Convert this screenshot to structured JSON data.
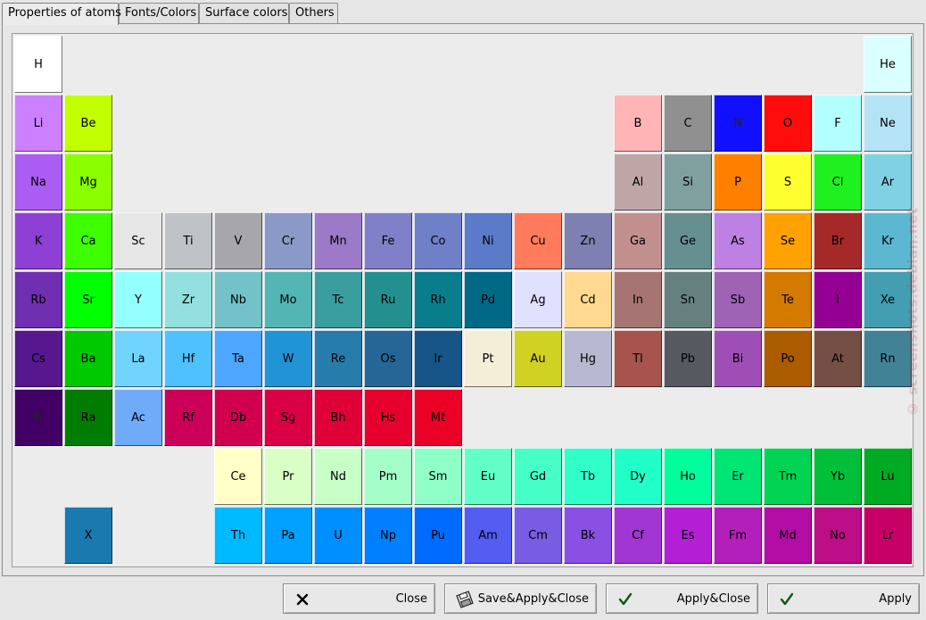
{
  "tabs": [
    {
      "label": "Properties of atoms",
      "active": true
    },
    {
      "label": "Fonts/Colors",
      "active": false
    },
    {
      "label": "Surface colors",
      "active": false
    },
    {
      "label": "Others",
      "active": false
    }
  ],
  "elements": [
    {
      "symbol": "H",
      "row": 1,
      "col": 1,
      "color": "#ffffff"
    },
    {
      "symbol": "He",
      "row": 1,
      "col": 18,
      "color": "#d9ffff"
    },
    {
      "symbol": "Li",
      "row": 2,
      "col": 1,
      "color": "#cc80ff"
    },
    {
      "symbol": "Be",
      "row": 2,
      "col": 2,
      "color": "#c2ff00"
    },
    {
      "symbol": "B",
      "row": 2,
      "col": 13,
      "color": "#ffb5b5"
    },
    {
      "symbol": "C",
      "row": 2,
      "col": 14,
      "color": "#909090"
    },
    {
      "symbol": "N",
      "row": 2,
      "col": 15,
      "color": "#1010ff"
    },
    {
      "symbol": "O",
      "row": 2,
      "col": 16,
      "color": "#ff0d0d"
    },
    {
      "symbol": "F",
      "row": 2,
      "col": 17,
      "color": "#b3ffff"
    },
    {
      "symbol": "Ne",
      "row": 2,
      "col": 18,
      "color": "#b3e3f5"
    },
    {
      "symbol": "Na",
      "row": 3,
      "col": 1,
      "color": "#ab5cf2"
    },
    {
      "symbol": "Mg",
      "row": 3,
      "col": 2,
      "color": "#8aff00"
    },
    {
      "symbol": "Al",
      "row": 3,
      "col": 13,
      "color": "#bfa6a6"
    },
    {
      "symbol": "Si",
      "row": 3,
      "col": 14,
      "color": "#80a0a0"
    },
    {
      "symbol": "P",
      "row": 3,
      "col": 15,
      "color": "#ff8000"
    },
    {
      "symbol": "S",
      "row": 3,
      "col": 16,
      "color": "#ffff30"
    },
    {
      "symbol": "Cl",
      "row": 3,
      "col": 17,
      "color": "#1ff01f"
    },
    {
      "symbol": "Ar",
      "row": 3,
      "col": 18,
      "color": "#80d1e3"
    },
    {
      "symbol": "K",
      "row": 4,
      "col": 1,
      "color": "#8f40d4"
    },
    {
      "symbol": "Ca",
      "row": 4,
      "col": 2,
      "color": "#3dff00"
    },
    {
      "symbol": "Sc",
      "row": 4,
      "col": 3,
      "color": "#e6e6e6"
    },
    {
      "symbol": "Ti",
      "row": 4,
      "col": 4,
      "color": "#bfc2c7"
    },
    {
      "symbol": "V",
      "row": 4,
      "col": 5,
      "color": "#a6a6ab"
    },
    {
      "symbol": "Cr",
      "row": 4,
      "col": 6,
      "color": "#8a99c7"
    },
    {
      "symbol": "Mn",
      "row": 4,
      "col": 7,
      "color": "#9c7ac7"
    },
    {
      "symbol": "Fe",
      "row": 4,
      "col": 8,
      "color": "#8080c8"
    },
    {
      "symbol": "Co",
      "row": 4,
      "col": 9,
      "color": "#7080c8"
    },
    {
      "symbol": "Ni",
      "row": 4,
      "col": 10,
      "color": "#5b7bc8"
    },
    {
      "symbol": "Cu",
      "row": 4,
      "col": 11,
      "color": "#ff7b5b"
    },
    {
      "symbol": "Zn",
      "row": 4,
      "col": 12,
      "color": "#7d80b0"
    },
    {
      "symbol": "Ga",
      "row": 4,
      "col": 13,
      "color": "#c28f8f"
    },
    {
      "symbol": "Ge",
      "row": 4,
      "col": 14,
      "color": "#668f8f"
    },
    {
      "symbol": "As",
      "row": 4,
      "col": 15,
      "color": "#bd80e3"
    },
    {
      "symbol": "Se",
      "row": 4,
      "col": 16,
      "color": "#ffa100"
    },
    {
      "symbol": "Br",
      "row": 4,
      "col": 17,
      "color": "#a62929"
    },
    {
      "symbol": "Kr",
      "row": 4,
      "col": 18,
      "color": "#5cb8d1"
    },
    {
      "symbol": "Rb",
      "row": 5,
      "col": 1,
      "color": "#702eb0"
    },
    {
      "symbol": "Sr",
      "row": 5,
      "col": 2,
      "color": "#00ff00"
    },
    {
      "symbol": "Y",
      "row": 5,
      "col": 3,
      "color": "#94ffff"
    },
    {
      "symbol": "Zr",
      "row": 5,
      "col": 4,
      "color": "#94e0e0"
    },
    {
      "symbol": "Nb",
      "row": 5,
      "col": 5,
      "color": "#73c2c9"
    },
    {
      "symbol": "Mo",
      "row": 5,
      "col": 6,
      "color": "#54b5b5"
    },
    {
      "symbol": "Tc",
      "row": 5,
      "col": 7,
      "color": "#3b9e9e"
    },
    {
      "symbol": "Ru",
      "row": 5,
      "col": 8,
      "color": "#248f8f"
    },
    {
      "symbol": "Rh",
      "row": 5,
      "col": 9,
      "color": "#0a7d8c"
    },
    {
      "symbol": "Pd",
      "row": 5,
      "col": 10,
      "color": "#006985"
    },
    {
      "symbol": "Ag",
      "row": 5,
      "col": 11,
      "color": "#e0e0ff"
    },
    {
      "symbol": "Cd",
      "row": 5,
      "col": 12,
      "color": "#ffd98f"
    },
    {
      "symbol": "In",
      "row": 5,
      "col": 13,
      "color": "#a67573"
    },
    {
      "symbol": "Sn",
      "row": 5,
      "col": 14,
      "color": "#668080"
    },
    {
      "symbol": "Sb",
      "row": 5,
      "col": 15,
      "color": "#9e63b5"
    },
    {
      "symbol": "Te",
      "row": 5,
      "col": 16,
      "color": "#d47a00"
    },
    {
      "symbol": "I",
      "row": 5,
      "col": 17,
      "color": "#940094"
    },
    {
      "symbol": "Xe",
      "row": 5,
      "col": 18,
      "color": "#429eb0"
    },
    {
      "symbol": "Cs",
      "row": 6,
      "col": 1,
      "color": "#57178f"
    },
    {
      "symbol": "Ba",
      "row": 6,
      "col": 2,
      "color": "#00c900"
    },
    {
      "symbol": "La",
      "row": 6,
      "col": 3,
      "color": "#70d4ff"
    },
    {
      "symbol": "Hf",
      "row": 6,
      "col": 4,
      "color": "#4dc2ff"
    },
    {
      "symbol": "Ta",
      "row": 6,
      "col": 5,
      "color": "#4da6ff"
    },
    {
      "symbol": "W",
      "row": 6,
      "col": 6,
      "color": "#2194d6"
    },
    {
      "symbol": "Re",
      "row": 6,
      "col": 7,
      "color": "#267dab"
    },
    {
      "symbol": "Os",
      "row": 6,
      "col": 8,
      "color": "#266696"
    },
    {
      "symbol": "Ir",
      "row": 6,
      "col": 9,
      "color": "#175487"
    },
    {
      "symbol": "Pt",
      "row": 6,
      "col": 10,
      "color": "#f5eed6"
    },
    {
      "symbol": "Au",
      "row": 6,
      "col": 11,
      "color": "#cfd123"
    },
    {
      "symbol": "Hg",
      "row": 6,
      "col": 12,
      "color": "#b8b8d0"
    },
    {
      "symbol": "Tl",
      "row": 6,
      "col": 13,
      "color": "#a6544d"
    },
    {
      "symbol": "Pb",
      "row": 6,
      "col": 14,
      "color": "#575961"
    },
    {
      "symbol": "Bi",
      "row": 6,
      "col": 15,
      "color": "#9e4fb5"
    },
    {
      "symbol": "Po",
      "row": 6,
      "col": 16,
      "color": "#ab5c00"
    },
    {
      "symbol": "At",
      "row": 6,
      "col": 17,
      "color": "#754f45"
    },
    {
      "symbol": "Rn",
      "row": 6,
      "col": 18,
      "color": "#428296"
    },
    {
      "symbol": "Fr",
      "row": 7,
      "col": 1,
      "color": "#420066"
    },
    {
      "symbol": "Ra",
      "row": 7,
      "col": 2,
      "color": "#007d00"
    },
    {
      "symbol": "Ac",
      "row": 7,
      "col": 3,
      "color": "#70abfa"
    },
    {
      "symbol": "Rf",
      "row": 7,
      "col": 4,
      "color": "#cc0059"
    },
    {
      "symbol": "Db",
      "row": 7,
      "col": 5,
      "color": "#d1004f"
    },
    {
      "symbol": "Sg",
      "row": 7,
      "col": 6,
      "color": "#d90045"
    },
    {
      "symbol": "Bh",
      "row": 7,
      "col": 7,
      "color": "#e00038"
    },
    {
      "symbol": "Hs",
      "row": 7,
      "col": 8,
      "color": "#e6002e"
    },
    {
      "symbol": "Mt",
      "row": 7,
      "col": 9,
      "color": "#eb0026"
    },
    {
      "symbol": "Ce",
      "row": 8,
      "col": 5,
      "color": "#ffffc7"
    },
    {
      "symbol": "Pr",
      "row": 8,
      "col": 6,
      "color": "#d9ffc7"
    },
    {
      "symbol": "Nd",
      "row": 8,
      "col": 7,
      "color": "#c7ffc7"
    },
    {
      "symbol": "Pm",
      "row": 8,
      "col": 8,
      "color": "#a3ffc7"
    },
    {
      "symbol": "Sm",
      "row": 8,
      "col": 9,
      "color": "#8fffc7"
    },
    {
      "symbol": "Eu",
      "row": 8,
      "col": 10,
      "color": "#61ffc7"
    },
    {
      "symbol": "Gd",
      "row": 8,
      "col": 11,
      "color": "#45ffc7"
    },
    {
      "symbol": "Tb",
      "row": 8,
      "col": 12,
      "color": "#30ffc7"
    },
    {
      "symbol": "Dy",
      "row": 8,
      "col": 13,
      "color": "#1fffc7"
    },
    {
      "symbol": "Ho",
      "row": 8,
      "col": 14,
      "color": "#00ff9c"
    },
    {
      "symbol": "Er",
      "row": 8,
      "col": 15,
      "color": "#00e675"
    },
    {
      "symbol": "Tm",
      "row": 8,
      "col": 16,
      "color": "#00d452"
    },
    {
      "symbol": "Yb",
      "row": 8,
      "col": 17,
      "color": "#00bf38"
    },
    {
      "symbol": "Lu",
      "row": 8,
      "col": 18,
      "color": "#00ab24"
    },
    {
      "symbol": "X",
      "row": 9,
      "col": 2,
      "color": "#1a7ab0"
    },
    {
      "symbol": "Th",
      "row": 9,
      "col": 5,
      "color": "#00baff"
    },
    {
      "symbol": "Pa",
      "row": 9,
      "col": 6,
      "color": "#00a1ff"
    },
    {
      "symbol": "U",
      "row": 9,
      "col": 7,
      "color": "#008fff"
    },
    {
      "symbol": "Np",
      "row": 9,
      "col": 8,
      "color": "#0080ff"
    },
    {
      "symbol": "Pu",
      "row": 9,
      "col": 9,
      "color": "#006bff"
    },
    {
      "symbol": "Am",
      "row": 9,
      "col": 10,
      "color": "#545cf2"
    },
    {
      "symbol": "Cm",
      "row": 9,
      "col": 11,
      "color": "#785ce3"
    },
    {
      "symbol": "Bk",
      "row": 9,
      "col": 12,
      "color": "#8a4fe3"
    },
    {
      "symbol": "Cf",
      "row": 9,
      "col": 13,
      "color": "#a136d4"
    },
    {
      "symbol": "Es",
      "row": 9,
      "col": 14,
      "color": "#b31fd4"
    },
    {
      "symbol": "Fm",
      "row": 9,
      "col": 15,
      "color": "#b31fba"
    },
    {
      "symbol": "Md",
      "row": 9,
      "col": 16,
      "color": "#b30da6"
    },
    {
      "symbol": "No",
      "row": 9,
      "col": 17,
      "color": "#bd0d87"
    },
    {
      "symbol": "Lr",
      "row": 9,
      "col": 18,
      "color": "#c70066"
    }
  ],
  "buttons": {
    "close": {
      "label": "Close",
      "icon": "x-icon"
    },
    "save_apply_close": {
      "label": "Save&Apply&Close",
      "icon": "save-disk-icon"
    },
    "apply_close": {
      "label": "Apply&Close",
      "icon": "checkmark-icon"
    },
    "apply": {
      "label": "Apply",
      "icon": "checkmark-icon"
    }
  },
  "watermark": "© screenshots.debian.net"
}
